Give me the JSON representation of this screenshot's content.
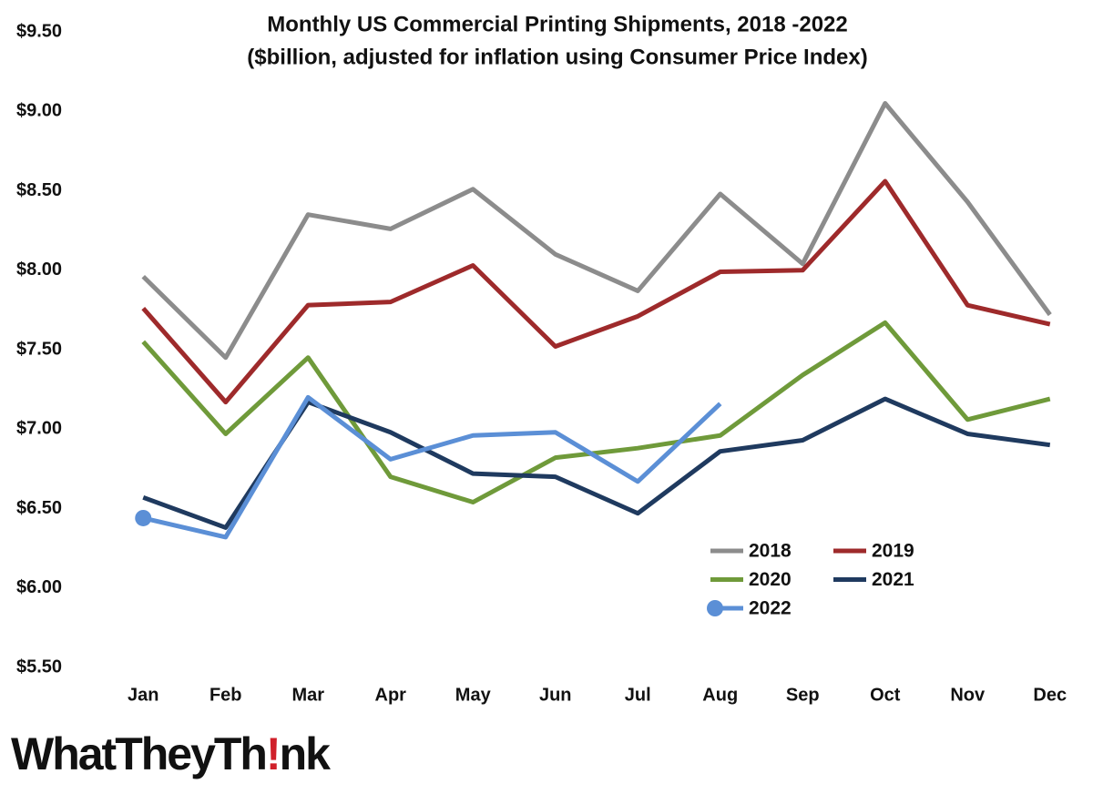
{
  "chart_data": {
    "type": "line",
    "title": "Monthly US Commercial Printing Shipments, 2018 -2022",
    "subtitle": "($billion, adjusted for inflation using Consumer Price Index)",
    "categories": [
      "Jan",
      "Feb",
      "Mar",
      "Apr",
      "May",
      "Jun",
      "Jul",
      "Aug",
      "Sep",
      "Oct",
      "Nov",
      "Dec"
    ],
    "series": [
      {
        "name": "2018",
        "color": "#8c8c8c",
        "values": [
          7.96,
          7.45,
          8.35,
          8.26,
          8.51,
          8.1,
          7.87,
          8.48,
          8.04,
          9.05,
          8.43,
          7.72
        ]
      },
      {
        "name": "2019",
        "color": "#9e2a2b",
        "values": [
          7.76,
          7.17,
          7.78,
          7.8,
          8.03,
          7.52,
          7.71,
          7.99,
          8.0,
          8.56,
          7.78,
          7.66
        ]
      },
      {
        "name": "2020",
        "color": "#6f9a3a",
        "values": [
          7.55,
          6.97,
          7.45,
          6.7,
          6.54,
          6.82,
          6.88,
          6.96,
          7.34,
          7.67,
          7.06,
          7.19
        ]
      },
      {
        "name": "2021",
        "color": "#1f3a5f",
        "values": [
          6.57,
          6.38,
          7.17,
          6.98,
          6.72,
          6.7,
          6.47,
          6.86,
          6.93,
          7.19,
          6.97,
          6.9
        ]
      },
      {
        "name": "2022",
        "color": "#5b8fd6",
        "marker": "start",
        "values": [
          6.44,
          6.32,
          7.2,
          6.81,
          6.96,
          6.98,
          6.67,
          7.16,
          null,
          null,
          null,
          null
        ]
      }
    ],
    "ylim": [
      5.5,
      9.5
    ],
    "yticks": [
      {
        "value": 5.5,
        "label": "$5.50"
      },
      {
        "value": 6,
        "label": "$6.00"
      },
      {
        "value": 6.5,
        "label": "$6.50"
      },
      {
        "value": 7,
        "label": "$7.00"
      },
      {
        "value": 7.5,
        "label": "$7.50"
      },
      {
        "value": 8,
        "label": "$8.00"
      },
      {
        "value": 8.5,
        "label": "$8.50"
      },
      {
        "value": 9,
        "label": "$9.00"
      },
      {
        "value": 9.5,
        "label": "$9.50"
      }
    ],
    "grid": false,
    "legend": "lower-right",
    "logo": [
      "WhatTheyTh",
      "!",
      "nk"
    ]
  }
}
